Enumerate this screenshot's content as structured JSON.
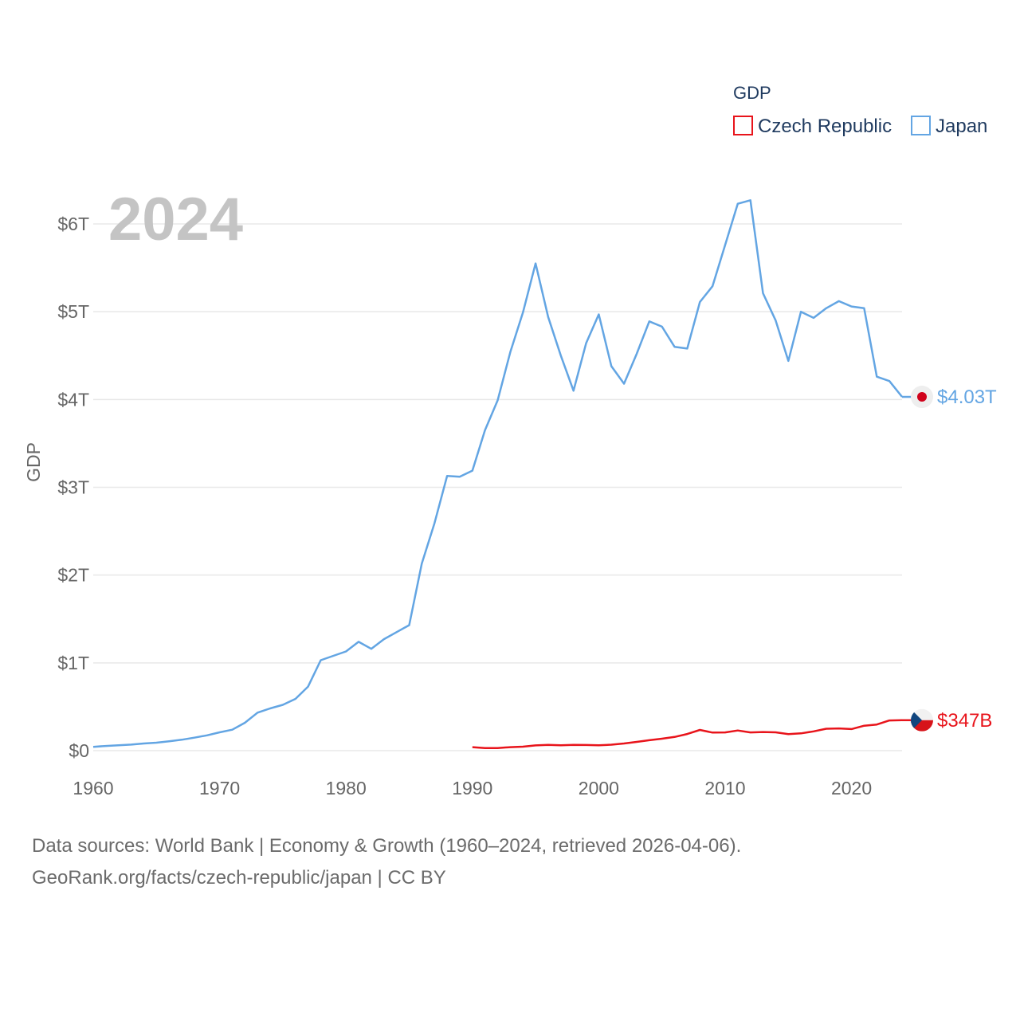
{
  "chart_data": {
    "type": "line",
    "legend_title": "GDP",
    "legend_position": "top-right",
    "ylabel": "GDP",
    "xlabel": "",
    "year_label": "2024",
    "xlim": [
      1960,
      2024
    ],
    "ylim": [
      0,
      6300000000000
    ],
    "x_ticks": [
      1960,
      1970,
      1980,
      1990,
      2000,
      2010,
      2020
    ],
    "y_ticks": [
      {
        "value": 0,
        "label": "$0"
      },
      {
        "value": 1000000000000,
        "label": "$1T"
      },
      {
        "value": 2000000000000,
        "label": "$2T"
      },
      {
        "value": 3000000000000,
        "label": "$3T"
      },
      {
        "value": 4000000000000,
        "label": "$4T"
      },
      {
        "value": 5000000000000,
        "label": "$5T"
      },
      {
        "value": 6000000000000,
        "label": "$6T"
      }
    ],
    "series": [
      {
        "name": "Czech Republic",
        "color": "#e8141b",
        "end_label": "$347B",
        "flag_icon": "czech-flag-icon",
        "x": [
          1990,
          1991,
          1992,
          1993,
          1994,
          1995,
          1996,
          1997,
          1998,
          1999,
          2000,
          2001,
          2002,
          2003,
          2004,
          2005,
          2006,
          2007,
          2008,
          2009,
          2010,
          2011,
          2012,
          2013,
          2014,
          2015,
          2016,
          2017,
          2018,
          2019,
          2020,
          2021,
          2022,
          2023,
          2024
        ],
        "values": [
          40000000000.0,
          30000000000.0,
          30000000000.0,
          40000000000.0,
          45000000000.0,
          60000000000.0,
          66000000000.0,
          62000000000.0,
          66000000000.0,
          64000000000.0,
          61000000000.0,
          68000000000.0,
          82000000000.0,
          100000000000.0,
          119000000000.0,
          136000000000.0,
          156000000000.0,
          190000000000.0,
          236000000000.0,
          206000000000.0,
          208000000000.0,
          230000000000.0,
          208000000000.0,
          212000000000.0,
          209000000000.0,
          189000000000.0,
          197000000000.0,
          220000000000.0,
          250000000000.0,
          253000000000.0,
          246000000000.0,
          284000000000.0,
          298000000000.0,
          344000000000.0,
          347000000000.0
        ]
      },
      {
        "name": "Japan",
        "color": "#63a5e3",
        "end_label": "$4.03T",
        "flag_icon": "japan-flag-icon",
        "x": [
          1960,
          1961,
          1962,
          1963,
          1964,
          1965,
          1966,
          1967,
          1968,
          1969,
          1970,
          1971,
          1972,
          1973,
          1974,
          1975,
          1976,
          1977,
          1978,
          1979,
          1980,
          1981,
          1982,
          1983,
          1984,
          1985,
          1986,
          1987,
          1988,
          1989,
          1990,
          1991,
          1992,
          1993,
          1994,
          1995,
          1996,
          1997,
          1998,
          1999,
          2000,
          2001,
          2002,
          2003,
          2004,
          2005,
          2006,
          2007,
          2008,
          2009,
          2010,
          2011,
          2012,
          2013,
          2014,
          2015,
          2016,
          2017,
          2018,
          2019,
          2020,
          2021,
          2022,
          2023,
          2024
        ],
        "values": [
          44000000000.0,
          54000000000.0,
          61000000000.0,
          69000000000.0,
          82000000000.0,
          91000000000.0,
          106000000000.0,
          124000000000.0,
          148000000000.0,
          174000000000.0,
          209000000000.0,
          239000000000.0,
          318000000000.0,
          433000000000.0,
          481000000000.0,
          522000000000.0,
          590000000000.0,
          730000000000.0,
          1030000000000.0,
          1080000000000.0,
          1130000000000.0,
          1240000000000.0,
          1160000000000.0,
          1270000000000.0,
          1350000000000.0,
          1430000000000.0,
          2130000000000.0,
          2590000000000.0,
          3130000000000.0,
          3120000000000.0,
          3190000000000.0,
          3650000000000.0,
          3990000000000.0,
          4540000000000.0,
          4990000000000.0,
          5550000000000.0,
          4940000000000.0,
          4500000000000.0,
          4100000000000.0,
          4640000000000.0,
          4970000000000.0,
          4380000000000.0,
          4180000000000.0,
          4520000000000.0,
          4890000000000.0,
          4830000000000.0,
          4600000000000.0,
          4580000000000.0,
          5110000000000.0,
          5290000000000.0,
          5760000000000.0,
          6230000000000.0,
          6270000000000.0,
          5210000000000.0,
          4900000000000.0,
          4440000000000.0,
          5000000000000.0,
          4930000000000.0,
          5040000000000.0,
          5120000000000.0,
          5060000000000.0,
          5040000000000.0,
          4260000000000.0,
          4210000000000.0,
          4030000000000.0
        ]
      }
    ]
  },
  "footer": {
    "line1": "Data sources: World Bank | Economy & Growth (1960–2024, retrieved 2026-04-06).",
    "line2": "GeoRank.org/facts/czech-republic/japan | CC BY"
  }
}
